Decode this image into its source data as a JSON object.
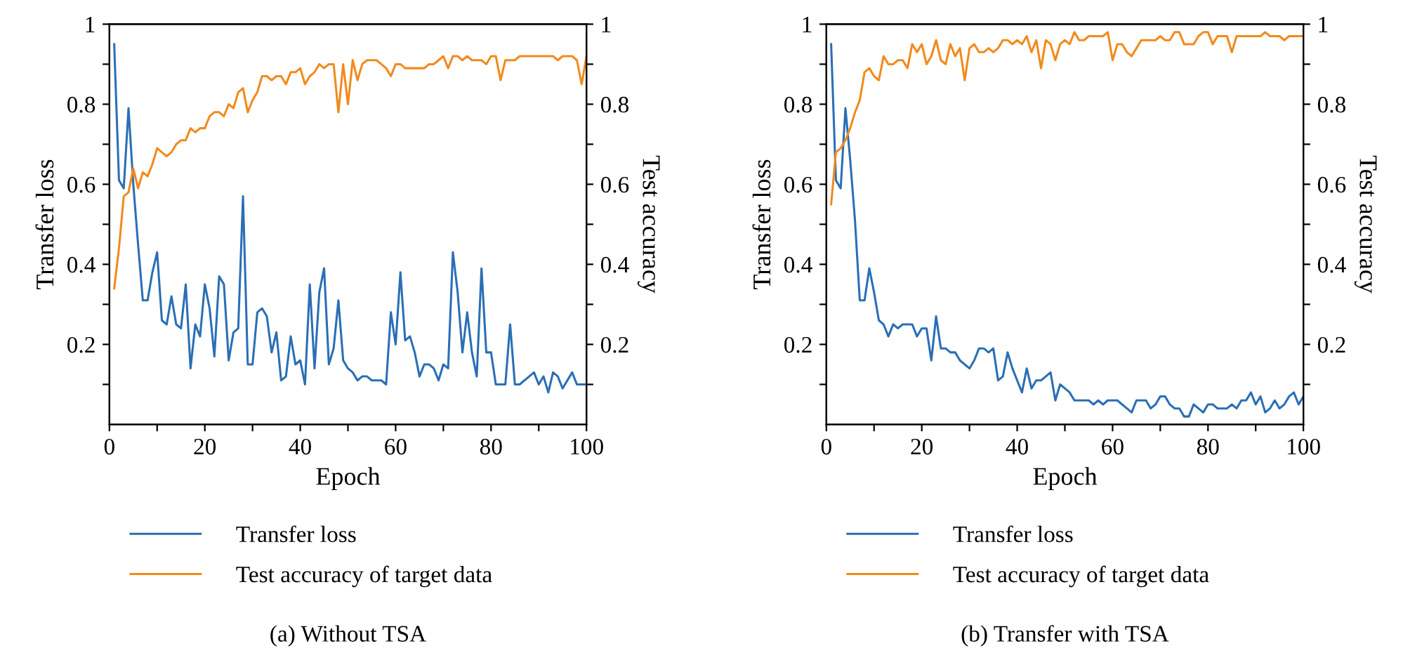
{
  "chart_data": [
    {
      "type": "line",
      "title": "(a) Without TSA",
      "xlabel": "Epoch",
      "ylabel": "Transfer loss",
      "y2label": "Test accuracy",
      "x": [
        1,
        2,
        3,
        4,
        5,
        6,
        7,
        8,
        9,
        10,
        11,
        12,
        13,
        14,
        15,
        16,
        17,
        18,
        19,
        20,
        21,
        22,
        23,
        24,
        25,
        26,
        27,
        28,
        29,
        30,
        31,
        32,
        33,
        34,
        35,
        36,
        37,
        38,
        39,
        40,
        41,
        42,
        43,
        44,
        45,
        46,
        47,
        48,
        49,
        50,
        51,
        52,
        53,
        54,
        55,
        56,
        57,
        58,
        59,
        60,
        61,
        62,
        63,
        64,
        65,
        66,
        67,
        68,
        69,
        70,
        71,
        72,
        73,
        74,
        75,
        76,
        77,
        78,
        79,
        80,
        81,
        82,
        83,
        84,
        85,
        86,
        87,
        88,
        89,
        90,
        91,
        92,
        93,
        94,
        95,
        96,
        97,
        98,
        99,
        100
      ],
      "series": [
        {
          "name": "Transfer loss",
          "color": "#2a6fb5",
          "values": [
            0.95,
            0.61,
            0.59,
            0.79,
            0.6,
            0.45,
            0.31,
            0.31,
            0.38,
            0.43,
            0.26,
            0.25,
            0.32,
            0.25,
            0.24,
            0.35,
            0.14,
            0.25,
            0.22,
            0.35,
            0.29,
            0.17,
            0.37,
            0.35,
            0.16,
            0.23,
            0.24,
            0.57,
            0.15,
            0.15,
            0.28,
            0.29,
            0.27,
            0.18,
            0.23,
            0.11,
            0.12,
            0.22,
            0.15,
            0.16,
            0.1,
            0.35,
            0.14,
            0.33,
            0.39,
            0.15,
            0.19,
            0.31,
            0.16,
            0.14,
            0.13,
            0.11,
            0.12,
            0.12,
            0.11,
            0.11,
            0.11,
            0.1,
            0.28,
            0.2,
            0.38,
            0.21,
            0.22,
            0.18,
            0.12,
            0.15,
            0.15,
            0.14,
            0.11,
            0.15,
            0.14,
            0.43,
            0.33,
            0.18,
            0.28,
            0.18,
            0.12,
            0.39,
            0.18,
            0.18,
            0.1,
            0.1,
            0.1,
            0.25,
            0.1,
            0.1,
            0.11,
            0.12,
            0.13,
            0.1,
            0.12,
            0.08,
            0.13,
            0.12,
            0.09,
            0.11,
            0.13,
            0.1,
            0.1,
            0.1
          ]
        },
        {
          "name": "Test accuracy of target data",
          "color": "#f28a1c",
          "axis": "y2",
          "values": [
            0.34,
            0.44,
            0.57,
            0.58,
            0.64,
            0.59,
            0.63,
            0.62,
            0.65,
            0.69,
            0.68,
            0.67,
            0.68,
            0.7,
            0.71,
            0.71,
            0.74,
            0.73,
            0.74,
            0.74,
            0.77,
            0.78,
            0.78,
            0.77,
            0.8,
            0.79,
            0.83,
            0.84,
            0.78,
            0.81,
            0.83,
            0.87,
            0.87,
            0.86,
            0.87,
            0.87,
            0.85,
            0.88,
            0.88,
            0.89,
            0.85,
            0.87,
            0.88,
            0.9,
            0.89,
            0.9,
            0.9,
            0.78,
            0.9,
            0.8,
            0.91,
            0.86,
            0.9,
            0.91,
            0.91,
            0.91,
            0.9,
            0.89,
            0.87,
            0.9,
            0.9,
            0.89,
            0.89,
            0.89,
            0.89,
            0.89,
            0.9,
            0.9,
            0.91,
            0.92,
            0.89,
            0.92,
            0.92,
            0.91,
            0.92,
            0.91,
            0.91,
            0.91,
            0.9,
            0.92,
            0.92,
            0.86,
            0.91,
            0.91,
            0.91,
            0.92,
            0.92,
            0.92,
            0.92,
            0.92,
            0.92,
            0.92,
            0.92,
            0.91,
            0.92,
            0.92,
            0.92,
            0.91,
            0.85,
            0.92
          ]
        }
      ],
      "xlim": [
        0,
        100
      ],
      "xticks": [
        0,
        {
          "value": 10,
          "label": null
        },
        20,
        {
          "value": 30,
          "label": null
        },
        40,
        {
          "value": 50,
          "label": null
        },
        60,
        {
          "value": 70,
          "label": null
        },
        80,
        {
          "value": 90,
          "label": null
        },
        100
      ],
      "ylim": [
        0,
        1
      ],
      "yticks": [
        {
          "value": 0.1,
          "label": null
        },
        0.2,
        {
          "value": 0.3,
          "label": null
        },
        0.4,
        {
          "value": 0.5,
          "label": null
        },
        0.6,
        {
          "value": 0.7,
          "label": null
        },
        0.8,
        {
          "value": 0.9,
          "label": null
        },
        1
      ],
      "y2lim": [
        0,
        1
      ],
      "y2ticks": [
        {
          "value": 0.1,
          "label": null
        },
        0.2,
        {
          "value": 0.3,
          "label": null
        },
        0.4,
        {
          "value": 0.5,
          "label": null
        },
        0.6,
        {
          "value": 0.7,
          "label": null
        },
        0.8,
        {
          "value": 0.9,
          "label": null
        },
        1
      ],
      "legend": "bottom",
      "grid": false
    },
    {
      "type": "line",
      "title": "(b) Transfer with TSA",
      "xlabel": "Epoch",
      "ylabel": "Transfer loss",
      "y2label": "Test accuracy",
      "x": [
        1,
        2,
        3,
        4,
        5,
        6,
        7,
        8,
        9,
        10,
        11,
        12,
        13,
        14,
        15,
        16,
        17,
        18,
        19,
        20,
        21,
        22,
        23,
        24,
        25,
        26,
        27,
        28,
        29,
        30,
        31,
        32,
        33,
        34,
        35,
        36,
        37,
        38,
        39,
        40,
        41,
        42,
        43,
        44,
        45,
        46,
        47,
        48,
        49,
        50,
        51,
        52,
        53,
        54,
        55,
        56,
        57,
        58,
        59,
        60,
        61,
        62,
        63,
        64,
        65,
        66,
        67,
        68,
        69,
        70,
        71,
        72,
        73,
        74,
        75,
        76,
        77,
        78,
        79,
        80,
        81,
        82,
        83,
        84,
        85,
        86,
        87,
        88,
        89,
        90,
        91,
        92,
        93,
        94,
        95,
        96,
        97,
        98,
        99,
        100
      ],
      "series": [
        {
          "name": "Transfer loss",
          "color": "#2a6fb5",
          "values": [
            0.95,
            0.61,
            0.59,
            0.79,
            0.66,
            0.51,
            0.31,
            0.31,
            0.39,
            0.33,
            0.26,
            0.25,
            0.22,
            0.25,
            0.24,
            0.25,
            0.25,
            0.25,
            0.22,
            0.24,
            0.24,
            0.16,
            0.27,
            0.19,
            0.19,
            0.18,
            0.18,
            0.16,
            0.15,
            0.14,
            0.16,
            0.19,
            0.19,
            0.18,
            0.19,
            0.11,
            0.12,
            0.18,
            0.14,
            0.11,
            0.08,
            0.14,
            0.09,
            0.11,
            0.11,
            0.12,
            0.13,
            0.06,
            0.1,
            0.09,
            0.08,
            0.06,
            0.06,
            0.06,
            0.06,
            0.05,
            0.06,
            0.05,
            0.06,
            0.06,
            0.06,
            0.05,
            0.04,
            0.03,
            0.06,
            0.06,
            0.06,
            0.04,
            0.05,
            0.07,
            0.07,
            0.05,
            0.04,
            0.04,
            0.02,
            0.02,
            0.05,
            0.04,
            0.03,
            0.05,
            0.05,
            0.04,
            0.04,
            0.04,
            0.05,
            0.04,
            0.06,
            0.06,
            0.08,
            0.05,
            0.07,
            0.03,
            0.04,
            0.06,
            0.04,
            0.05,
            0.07,
            0.08,
            0.05,
            0.07
          ]
        },
        {
          "name": "Test accuracy of target data",
          "color": "#f28a1c",
          "axis": "y2",
          "values": [
            0.55,
            0.68,
            0.69,
            0.71,
            0.74,
            0.78,
            0.81,
            0.88,
            0.89,
            0.87,
            0.86,
            0.92,
            0.9,
            0.9,
            0.91,
            0.91,
            0.89,
            0.95,
            0.93,
            0.95,
            0.9,
            0.92,
            0.96,
            0.91,
            0.9,
            0.95,
            0.92,
            0.94,
            0.86,
            0.94,
            0.95,
            0.93,
            0.93,
            0.94,
            0.93,
            0.94,
            0.96,
            0.96,
            0.95,
            0.96,
            0.95,
            0.97,
            0.93,
            0.96,
            0.89,
            0.96,
            0.95,
            0.91,
            0.95,
            0.96,
            0.95,
            0.98,
            0.96,
            0.96,
            0.97,
            0.97,
            0.97,
            0.97,
            0.98,
            0.91,
            0.95,
            0.95,
            0.93,
            0.92,
            0.94,
            0.96,
            0.96,
            0.96,
            0.96,
            0.97,
            0.96,
            0.96,
            0.98,
            0.98,
            0.95,
            0.95,
            0.95,
            0.97,
            0.98,
            0.98,
            0.95,
            0.97,
            0.97,
            0.97,
            0.93,
            0.97,
            0.97,
            0.97,
            0.97,
            0.97,
            0.97,
            0.98,
            0.97,
            0.97,
            0.97,
            0.96,
            0.97,
            0.97,
            0.97,
            0.97
          ]
        }
      ],
      "xlim": [
        0,
        100
      ],
      "xticks": [
        0,
        {
          "value": 10,
          "label": null
        },
        20,
        {
          "value": 30,
          "label": null
        },
        40,
        {
          "value": 50,
          "label": null
        },
        60,
        {
          "value": 70,
          "label": null
        },
        80,
        {
          "value": 90,
          "label": null
        },
        100
      ],
      "ylim": [
        0,
        1
      ],
      "yticks": [
        {
          "value": 0.1,
          "label": null
        },
        0.2,
        {
          "value": 0.3,
          "label": null
        },
        0.4,
        {
          "value": 0.5,
          "label": null
        },
        0.6,
        {
          "value": 0.7,
          "label": null
        },
        0.8,
        {
          "value": 0.9,
          "label": null
        },
        1
      ],
      "y2lim": [
        0,
        1
      ],
      "y2ticks": [
        {
          "value": 0.1,
          "label": null
        },
        0.2,
        {
          "value": 0.3,
          "label": null
        },
        0.4,
        {
          "value": 0.5,
          "label": null
        },
        0.6,
        {
          "value": 0.7,
          "label": null
        },
        0.8,
        {
          "value": 0.9,
          "label": null
        },
        1
      ],
      "legend": "bottom",
      "grid": false
    }
  ]
}
